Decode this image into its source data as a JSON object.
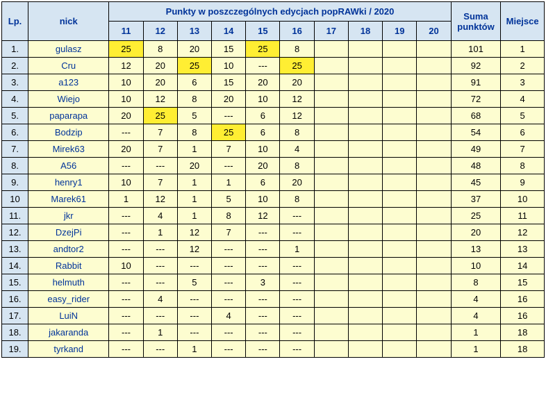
{
  "headers": {
    "lp": "Lp.",
    "nick": "nick",
    "main": "Punkty w poszczególnych edycjach popRAWki / 2020",
    "editions": [
      "11",
      "12",
      "13",
      "14",
      "15",
      "16",
      "17",
      "18",
      "19",
      "20"
    ],
    "sum": "Suma punktów",
    "place": "Miejsce"
  },
  "rows": [
    {
      "lp": "1.",
      "nick": "gulasz",
      "cells": [
        "25",
        "8",
        "20",
        "15",
        "25",
        "8",
        "",
        "",
        "",
        ""
      ],
      "hl": [
        0,
        4
      ],
      "sum": "101",
      "place": "1"
    },
    {
      "lp": "2.",
      "nick": "Cru",
      "cells": [
        "12",
        "20",
        "25",
        "10",
        "---",
        "25",
        "",
        "",
        "",
        ""
      ],
      "hl": [
        2,
        5
      ],
      "sum": "92",
      "place": "2"
    },
    {
      "lp": "3.",
      "nick": "a123",
      "cells": [
        "10",
        "20",
        "6",
        "15",
        "20",
        "20",
        "",
        "",
        "",
        ""
      ],
      "hl": [],
      "sum": "91",
      "place": "3"
    },
    {
      "lp": "4.",
      "nick": "Wiejo",
      "cells": [
        "10",
        "12",
        "8",
        "20",
        "10",
        "12",
        "",
        "",
        "",
        ""
      ],
      "hl": [],
      "sum": "72",
      "place": "4"
    },
    {
      "lp": "5.",
      "nick": "paparapa",
      "cells": [
        "20",
        "25",
        "5",
        "---",
        "6",
        "12",
        "",
        "",
        "",
        ""
      ],
      "hl": [
        1
      ],
      "sum": "68",
      "place": "5"
    },
    {
      "lp": "6.",
      "nick": "Bodzip",
      "cells": [
        "---",
        "7",
        "8",
        "25",
        "6",
        "8",
        "",
        "",
        "",
        ""
      ],
      "hl": [
        3
      ],
      "sum": "54",
      "place": "6"
    },
    {
      "lp": "7.",
      "nick": "Mirek63",
      "cells": [
        "20",
        "7",
        "1",
        "7",
        "10",
        "4",
        "",
        "",
        "",
        ""
      ],
      "hl": [],
      "sum": "49",
      "place": "7"
    },
    {
      "lp": "8.",
      "nick": "A56",
      "cells": [
        "---",
        "---",
        "20",
        "---",
        "20",
        "8",
        "",
        "",
        "",
        ""
      ],
      "hl": [],
      "sum": "48",
      "place": "8"
    },
    {
      "lp": "9.",
      "nick": "henry1",
      "cells": [
        "10",
        "7",
        "1",
        "1",
        "6",
        "20",
        "",
        "",
        "",
        ""
      ],
      "hl": [],
      "sum": "45",
      "place": "9"
    },
    {
      "lp": "10",
      "nick": "Marek61",
      "cells": [
        "1",
        "12",
        "1",
        "5",
        "10",
        "8",
        "",
        "",
        "",
        ""
      ],
      "hl": [],
      "sum": "37",
      "place": "10"
    },
    {
      "lp": "11.",
      "nick": "jkr",
      "cells": [
        "---",
        "4",
        "1",
        "8",
        "12",
        "---",
        "",
        "",
        "",
        ""
      ],
      "hl": [],
      "sum": "25",
      "place": "11"
    },
    {
      "lp": "12.",
      "nick": "DzejPi",
      "cells": [
        "---",
        "1",
        "12",
        "7",
        "---",
        "---",
        "",
        "",
        "",
        ""
      ],
      "hl": [],
      "sum": "20",
      "place": "12"
    },
    {
      "lp": "13.",
      "nick": "andtor2",
      "cells": [
        "---",
        "---",
        "12",
        "---",
        "---",
        "1",
        "",
        "",
        "",
        ""
      ],
      "hl": [],
      "sum": "13",
      "place": "13"
    },
    {
      "lp": "14.",
      "nick": "Rabbit",
      "cells": [
        "10",
        "---",
        "---",
        "---",
        "---",
        "---",
        "",
        "",
        "",
        ""
      ],
      "hl": [],
      "sum": "10",
      "place": "14"
    },
    {
      "lp": "15.",
      "nick": "helmuth",
      "cells": [
        "---",
        "---",
        "5",
        "---",
        "3",
        "---",
        "",
        "",
        "",
        ""
      ],
      "hl": [],
      "sum": "8",
      "place": "15"
    },
    {
      "lp": "16.",
      "nick": "easy_rider",
      "cells": [
        "---",
        "4",
        "---",
        "---",
        "---",
        "---",
        "",
        "",
        "",
        ""
      ],
      "hl": [],
      "sum": "4",
      "place": "16"
    },
    {
      "lp": "17.",
      "nick": "LuiN",
      "cells": [
        "---",
        "---",
        "---",
        "4",
        "---",
        "---",
        "",
        "",
        "",
        ""
      ],
      "hl": [],
      "sum": "4",
      "place": "16"
    },
    {
      "lp": "18.",
      "nick": "jakaranda",
      "cells": [
        "---",
        "1",
        "---",
        "---",
        "---",
        "---",
        "",
        "",
        "",
        ""
      ],
      "hl": [],
      "sum": "1",
      "place": "18"
    },
    {
      "lp": "19.",
      "nick": "tyrkand",
      "cells": [
        "---",
        "---",
        "1",
        "---",
        "---",
        "---",
        "",
        "",
        "",
        ""
      ],
      "hl": [],
      "sum": "1",
      "place": "18"
    }
  ]
}
